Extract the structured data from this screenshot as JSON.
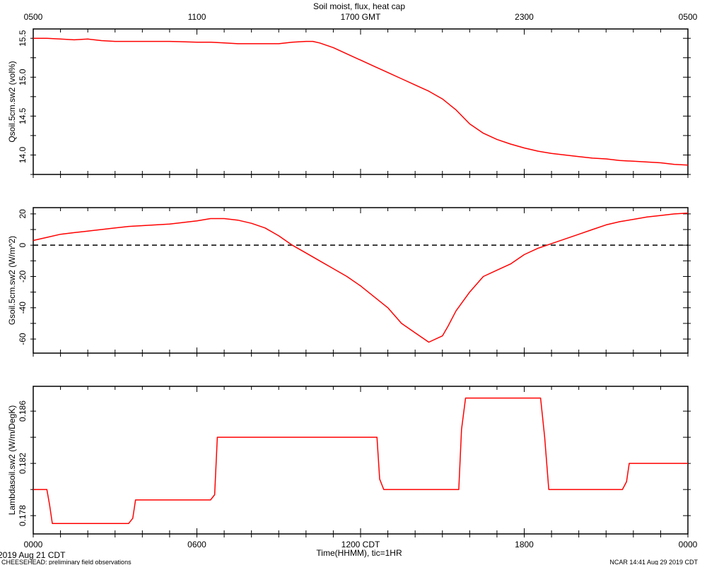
{
  "title": "Soil moist, flux, heat cap",
  "top_ticks": [
    "0500",
    "1100",
    "1700 GMT",
    "2300",
    "0500"
  ],
  "bottom_ticks": [
    "0000",
    "0600",
    "1200 CDT",
    "1800",
    "0000"
  ],
  "xlabel": "Time(HHMM), tic=1HR",
  "footer": {
    "date": "2019 Aug 21 CDT",
    "project": "CHEESEHEAD: preliminary field observations",
    "credit": "NCAR 14:41 Aug 29 2019 CDT"
  },
  "colors": {
    "series": "#ff0000",
    "axis": "#000000",
    "zero_line": "#000000"
  },
  "chart_data": [
    {
      "type": "line",
      "ylabel": "Qsoil.5cm.sw2 (vol%)",
      "xlim": [
        0,
        24
      ],
      "ylim": [
        13.75,
        15.62
      ],
      "yticks": [
        14.0,
        14.5,
        15.0,
        15.5
      ],
      "ytick_labels": [
        "14.0",
        "14.5",
        "15.0",
        "15.5"
      ],
      "grid": false,
      "series": [
        {
          "color": "#ff0000",
          "x": [
            0,
            0.5,
            1,
            1.5,
            2,
            2.5,
            3,
            4,
            5,
            6,
            6.5,
            7,
            7.5,
            8,
            8.5,
            9,
            9.5,
            10,
            10.25,
            10.5,
            11,
            11.5,
            12,
            12.5,
            13,
            13.5,
            14,
            14.5,
            15,
            15.5,
            16,
            16.5,
            17,
            17.5,
            18,
            18.5,
            19,
            19.5,
            20,
            20.5,
            21,
            21.5,
            22,
            22.5,
            23,
            23.5,
            24
          ],
          "y": [
            15.5,
            15.5,
            15.49,
            15.48,
            15.49,
            15.47,
            15.46,
            15.46,
            15.46,
            15.45,
            15.45,
            15.44,
            15.43,
            15.43,
            15.43,
            15.43,
            15.45,
            15.46,
            15.46,
            15.44,
            15.38,
            15.3,
            15.22,
            15.14,
            15.06,
            14.98,
            14.9,
            14.82,
            14.72,
            14.58,
            14.4,
            14.28,
            14.2,
            14.14,
            14.09,
            14.05,
            14.02,
            14.0,
            13.98,
            13.96,
            13.95,
            13.93,
            13.92,
            13.91,
            13.9,
            13.88,
            13.87
          ]
        }
      ]
    },
    {
      "type": "line",
      "ylabel": "Gsoil.5cm.sw2 (W/m^2)",
      "xlim": [
        0,
        24
      ],
      "ylim": [
        -69,
        24
      ],
      "yticks": [
        -60,
        -40,
        -20,
        0,
        20
      ],
      "ytick_labels": [
        "-60",
        "-40",
        "-20",
        "0",
        "20"
      ],
      "zero_line": true,
      "grid": false,
      "series": [
        {
          "color": "#ff0000",
          "x": [
            0,
            0.5,
            1,
            1.5,
            2,
            2.5,
            3,
            3.5,
            4,
            4.5,
            5,
            5.5,
            6,
            6.5,
            7,
            7.5,
            8,
            8.5,
            9,
            9.5,
            10,
            10.5,
            11,
            11.5,
            12,
            12.5,
            13,
            13.5,
            14,
            14.5,
            15,
            15.2,
            15.5,
            16,
            16.5,
            17,
            17.5,
            18,
            18.5,
            19,
            19.5,
            20,
            20.5,
            21,
            21.5,
            22,
            22.5,
            23,
            23.5,
            24
          ],
          "y": [
            3,
            5,
            7,
            8,
            9,
            10,
            11,
            12,
            12.5,
            13,
            13.5,
            14.5,
            15.5,
            17,
            17,
            16,
            14,
            11,
            6,
            0,
            -5,
            -10,
            -15,
            -20,
            -26,
            -33,
            -40,
            -50,
            -56,
            -62,
            -58,
            -52,
            -42,
            -30,
            -20,
            -16,
            -12,
            -6,
            -2,
            1,
            4,
            7,
            10,
            13,
            15,
            16.5,
            18,
            19,
            20,
            20.5
          ]
        }
      ]
    },
    {
      "type": "line",
      "ylabel": "Lambdasoil.sw2 (W/m/DegK)",
      "xlim": [
        0,
        24
      ],
      "ylim": [
        0.1766,
        0.1879
      ],
      "yticks": [
        0.178,
        0.182,
        0.186
      ],
      "ytick_labels": [
        "0.178",
        "0.182",
        "0.186"
      ],
      "grid": false,
      "series": [
        {
          "color": "#ff0000",
          "x": [
            0,
            0.5,
            0.6,
            0.7,
            3.5,
            3.65,
            3.75,
            6.5,
            6.65,
            6.75,
            12.6,
            12.7,
            12.85,
            15.6,
            15.7,
            15.85,
            18.6,
            18.75,
            18.9,
            21.6,
            21.75,
            21.85,
            24
          ],
          "y": [
            0.18,
            0.18,
            0.1788,
            0.1774,
            0.1774,
            0.1778,
            0.1792,
            0.1792,
            0.1796,
            0.184,
            0.184,
            0.1808,
            0.18,
            0.18,
            0.1846,
            0.187,
            0.187,
            0.184,
            0.18,
            0.18,
            0.1806,
            0.182,
            0.182
          ]
        }
      ]
    }
  ]
}
